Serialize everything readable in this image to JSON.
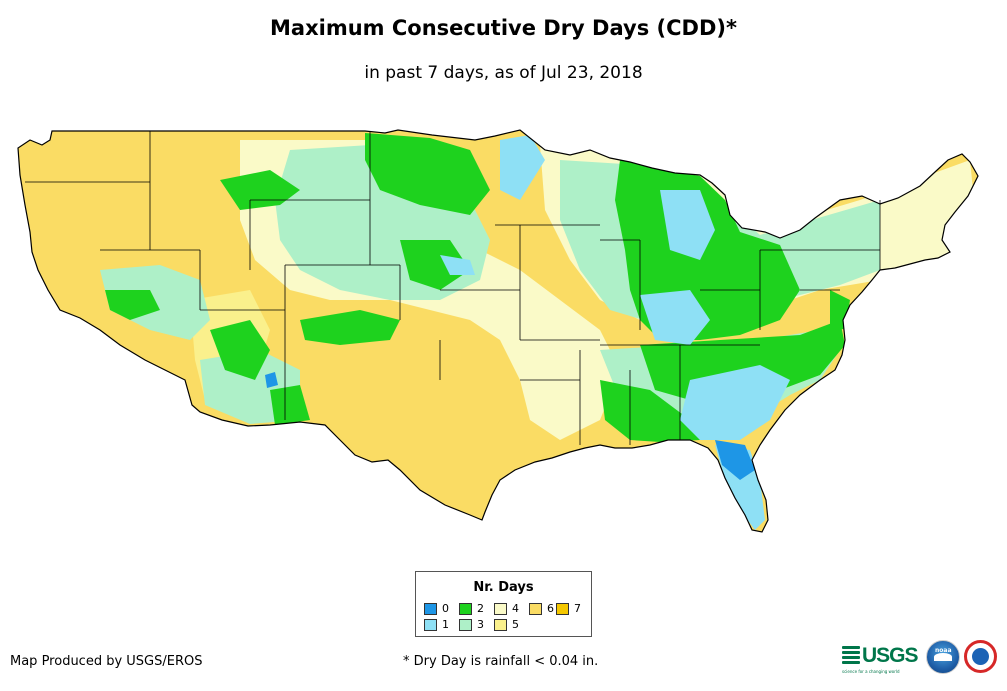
{
  "title": "Maximum Consecutive Dry Days (CDD)*",
  "subtitle": "in past 7 days, as of Jul 23, 2018",
  "legend": {
    "title": "Nr. Days",
    "items": [
      {
        "label": "0",
        "color": "#1e96e6"
      },
      {
        "label": "1",
        "color": "#8ee0f5"
      },
      {
        "label": "2",
        "color": "#1ed21e"
      },
      {
        "label": "3",
        "color": "#aef0c8"
      },
      {
        "label": "4",
        "color": "#fafac8"
      },
      {
        "label": "5",
        "color": "#faf08c"
      },
      {
        "label": "6",
        "color": "#fadc64"
      },
      {
        "label": "7",
        "color": "#f5c800"
      }
    ]
  },
  "credit": "Map Produced by USGS/EROS",
  "footnote": "* Dry Day is rainfall < 0.04 in.",
  "logos": {
    "usgs_text": "USGS",
    "usgs_tagline": "science for a changing world",
    "noaa_text": "noaa"
  }
}
